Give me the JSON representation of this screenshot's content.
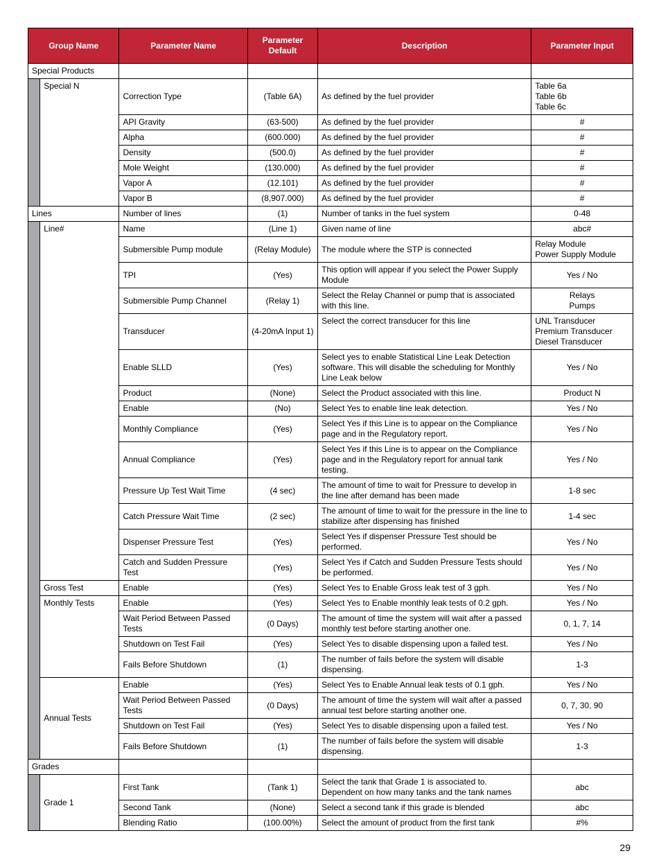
{
  "header": {
    "group_name": "Group Name",
    "param_name": "Parameter Name",
    "param_default": "Parameter Default",
    "description": "Description",
    "param_input": "Parameter Input"
  },
  "page_num": "29",
  "groups": {
    "special_products": "Special Products",
    "special_n": "Special N",
    "lines": "Lines",
    "line_hash": "Line#",
    "gross_test": "Gross Test",
    "monthly_tests": "Monthly Tests",
    "annual_tests": "Annual Tests",
    "grades": "Grades",
    "grade_1": "Grade 1"
  },
  "rows": [
    {
      "pn": "Correction Type",
      "pd": "(Table 6A)",
      "de": "As defined by the fuel provider",
      "pi": "Table 6a\nTable 6b\nTable 6c",
      "pi_align": "left"
    },
    {
      "pn": "API Gravity",
      "pd": "(63-500)",
      "de": "As defined by the fuel provider",
      "pi": "#"
    },
    {
      "pn": "Alpha",
      "pd": "(600.000)",
      "de": "As defined by the fuel provider",
      "pi": "#"
    },
    {
      "pn": "Density",
      "pd": "(500.0)",
      "de": "As defined by the fuel provider",
      "pi": "#"
    },
    {
      "pn": "Mole Weight",
      "pd": "(130.000)",
      "de": "As defined by the fuel provider",
      "pi": "#"
    },
    {
      "pn": "Vapor A",
      "pd": "(12.101)",
      "de": "As defined by the fuel provider",
      "pi": "#"
    },
    {
      "pn": "Vapor B",
      "pd": "(8,907.000)",
      "de": "As defined by the fuel provider",
      "pi": "#"
    },
    {
      "pn": "Number of lines",
      "pd": "(1)",
      "de": "Number of tanks in the fuel system",
      "pi": "0-48"
    },
    {
      "pn": "Name",
      "pd": "(Line 1)",
      "de": "Given name of line",
      "pi": "abc#"
    },
    {
      "pn": "Submersible Pump module",
      "pd": "(Relay Module)",
      "de": "The module where the STP is connected",
      "pi": "Relay Module\nPower Supply Module",
      "pi_align": "left"
    },
    {
      "pn": "TPI",
      "pd": "(Yes)",
      "de": "This option will appear if you select the Power Supply Module",
      "pi": "Yes / No"
    },
    {
      "pn": "Submersible Pump Channel",
      "pd": "(Relay 1)",
      "de": "Select the Relay Channel or pump that is associated with this line.",
      "pi": "Relays\nPumps"
    },
    {
      "pn": "Transducer",
      "pd": "(4-20mA Input 1)",
      "de": "Select the correct transducer for this line",
      "pi": "UNL Transducer\nPremium Transducer\nDiesel Transducer",
      "pi_align": "left",
      "de_valign": "top"
    },
    {
      "pn": "Enable SLLD",
      "pd": "(Yes)",
      "de": "Select yes to enable Statistical Line Leak Detection software. This will disable the scheduling for Monthly Line Leak below",
      "pi": "Yes / No"
    },
    {
      "pn": "Product",
      "pd": "(None)",
      "de": "Select the Product associated with this line.",
      "pi": "Product N"
    },
    {
      "pn": "Enable",
      "pd": "(No)",
      "de": "Select Yes to enable line leak detection.",
      "pi": "Yes / No"
    },
    {
      "pn": "Monthly Compliance",
      "pd": "(Yes)",
      "de": "Select Yes if this Line is to appear on the Compliance page and in the Regulatory report.",
      "pi": "Yes / No"
    },
    {
      "pn": "Annual Compliance",
      "pd": "(Yes)",
      "de": "Select Yes if this Line is to appear on the Compliance page and in the Regulatory report for annual tank testing.",
      "pi": "Yes / No"
    },
    {
      "pn": "Pressure Up Test Wait Time",
      "pd": "(4 sec)",
      "de": "The amount of time to wait for Pressure to develop in the line after demand has been made",
      "pi": "1-8 sec"
    },
    {
      "pn": "Catch Pressure Wait Time",
      "pd": "(2 sec)",
      "de": "The amount of time to wait for the pressure in the line to stabilize after dispensing has finished",
      "pi": "1-4 sec"
    },
    {
      "pn": "Dispenser Pressure Test",
      "pd": "(Yes)",
      "de": "Select Yes if dispenser Pressure Test should be performed.",
      "pi": "Yes / No"
    },
    {
      "pn": "Catch and Sudden Pressure Test",
      "pd": "(Yes)",
      "de": "Select Yes if Catch and Sudden Pressure Tests should be performed.",
      "pi": "Yes / No"
    },
    {
      "pn": "Enable",
      "pd": "(Yes)",
      "de": "Select Yes to Enable Gross leak test of 3 gph.",
      "pi": "Yes / No"
    },
    {
      "pn": "Enable",
      "pd": "(Yes)",
      "de": "Select Yes to Enable monthly leak tests of 0.2 gph.",
      "pi": "Yes / No"
    },
    {
      "pn": "Wait Period Between Passed Tests",
      "pd": "(0 Days)",
      "de": "The amount of time the system will wait after a passed monthly test before starting another one.",
      "pi": "0, 1, 7, 14"
    },
    {
      "pn": "Shutdown on Test Fail",
      "pd": "(Yes)",
      "de": "Select Yes to disable dispensing upon a failed test.",
      "pi": "Yes / No"
    },
    {
      "pn": "Fails Before Shutdown",
      "pd": "(1)",
      "de": "The number of fails before the system will disable dispensing.",
      "pi": "1-3"
    },
    {
      "pn": "Enable",
      "pd": "(Yes)",
      "de": "Select Yes to Enable Annual leak tests of 0.1 gph.",
      "pi": "Yes / No"
    },
    {
      "pn": "Wait Period Between Passed Tests",
      "pd": "(0 Days)",
      "de": "The amount of time the system will wait after a passed annual test before starting another one.",
      "pi": "0, 7, 30, 90"
    },
    {
      "pn": "Shutdown on Test Fail",
      "pd": "(Yes)",
      "de": "Select Yes to disable dispensing upon a failed test.",
      "pi": "Yes / No"
    },
    {
      "pn": "Fails Before Shutdown",
      "pd": "(1)",
      "de": "The number of fails before the system will disable dispensing.",
      "pi": "1-3"
    },
    {
      "pn": "First Tank",
      "pd": "(Tank 1)",
      "de": "Select the tank that Grade 1 is associated to. Dependent on how many tanks and the tank names",
      "pi": "abc"
    },
    {
      "pn": "Second Tank",
      "pd": "(None)",
      "de": "Select a second tank if this grade is blended",
      "pi": "abc"
    },
    {
      "pn": "Blending Ratio",
      "pd": "(100.00%)",
      "de": "Select the amount of product from the first tank",
      "pi": "#%"
    }
  ]
}
